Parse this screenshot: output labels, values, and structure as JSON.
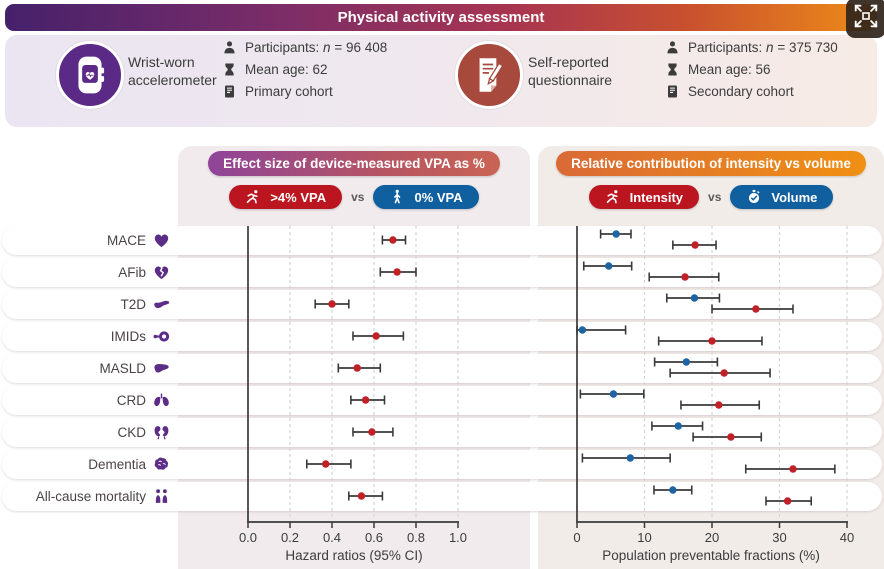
{
  "header": {
    "title": "Physical activity assessment"
  },
  "viewer": {
    "expand_icon": "expand-icon"
  },
  "colors": {
    "accent_purple": "#5b2a86",
    "questionnaire_red": "#a8493e",
    "intensity_red": "#c02026",
    "volume_blue": "#1e64a4",
    "errorbar_dark": "#3a3a3a",
    "grid": "#d9d2d6"
  },
  "cohort_panel": {
    "groups": [
      {
        "icon": "smartwatch-icon",
        "name": "Wrist-worn accelerometer",
        "stats": [
          {
            "icon": "person-icon",
            "prefix": "Participants: ",
            "n": "n",
            "value": " = 96 408"
          },
          {
            "icon": "hourglass-icon",
            "text": "Mean age: 62"
          },
          {
            "icon": "book-icon",
            "text": "Primary cohort"
          }
        ]
      },
      {
        "icon": "questionnaire-icon",
        "name": "Self-reported questionnaire",
        "stats": [
          {
            "icon": "person-icon",
            "prefix": "Participants: ",
            "n": "n",
            "value": " = 375 730"
          },
          {
            "icon": "hourglass-icon",
            "text": "Mean age: 56"
          },
          {
            "icon": "book-icon",
            "text": "Secondary cohort"
          }
        ]
      }
    ]
  },
  "rows": [
    {
      "label": "MACE",
      "icon": "heart-icon"
    },
    {
      "label": "AFib",
      "icon": "broken-heart-icon"
    },
    {
      "label": "T2D",
      "icon": "pancreas-icon"
    },
    {
      "label": "IMIDs",
      "icon": "intestine-icon"
    },
    {
      "label": "MASLD",
      "icon": "liver-icon"
    },
    {
      "label": "CRD",
      "icon": "lungs-icon"
    },
    {
      "label": "CKD",
      "icon": "kidneys-icon"
    },
    {
      "label": "Dementia",
      "icon": "brain-icon"
    },
    {
      "label": "All-cause mortality",
      "icon": "people-icon"
    }
  ],
  "chart_data": [
    {
      "type": "forest",
      "title": "Effect size of device-measured VPA as %",
      "vs_label": "vs",
      "legend": [
        {
          "label": ">4% VPA",
          "icon": "runner-icon",
          "color": "#bb161f"
        },
        {
          "label": "0% VPA",
          "icon": "walker-icon",
          "color": "#10609f"
        }
      ],
      "xlabel": "Hazard ratios (95% CI)",
      "xlim": [
        0,
        1.0
      ],
      "xticks": [
        0,
        0.2,
        0.4,
        0.6,
        0.8,
        1.0
      ],
      "xtick_labels": [
        "0.0",
        "0.2",
        "0.4",
        "0.6",
        "0.8",
        "1.0"
      ],
      "grid": "dashed-vertical",
      "categories": [
        "MACE",
        "AFib",
        "T2D",
        "IMIDs",
        "MASLD",
        "CRD",
        "CKD",
        "Dementia",
        "All-cause mortality"
      ],
      "series": [
        {
          "name": ">4% VPA vs 0% VPA",
          "color": "#c02026",
          "values": [
            0.69,
            0.71,
            0.4,
            0.61,
            0.52,
            0.56,
            0.59,
            0.37,
            0.54
          ],
          "ci_low": [
            0.64,
            0.63,
            0.32,
            0.5,
            0.43,
            0.49,
            0.5,
            0.28,
            0.48
          ],
          "ci_high": [
            0.75,
            0.8,
            0.48,
            0.74,
            0.63,
            0.65,
            0.69,
            0.49,
            0.64
          ]
        }
      ]
    },
    {
      "type": "forest",
      "title": "Relative contribution of intensity vs volume",
      "vs_label": "vs",
      "legend": [
        {
          "label": "Intensity",
          "icon": "runner-icon",
          "color": "#bb161f"
        },
        {
          "label": "Volume",
          "icon": "stopwatch-icon",
          "color": "#10609f"
        }
      ],
      "xlabel": "Population preventable fractions (%)",
      "xlim": [
        0,
        40
      ],
      "xticks": [
        0,
        10,
        20,
        30,
        40
      ],
      "xtick_labels": [
        "0",
        "10",
        "20",
        "30",
        "40"
      ],
      "grid": "dashed-vertical",
      "categories": [
        "MACE",
        "AFib",
        "T2D",
        "IMIDs",
        "MASLD",
        "CRD",
        "CKD",
        "Dementia",
        "All-cause mortality"
      ],
      "series": [
        {
          "name": "Volume",
          "color": "#1e64a4",
          "values": [
            5.8,
            4.7,
            17.4,
            0.8,
            16.2,
            5.4,
            15.0,
            7.9,
            14.2
          ],
          "ci_low": [
            3.5,
            1.0,
            13.3,
            0.0,
            11.5,
            0.5,
            11.1,
            0.8,
            11.4
          ],
          "ci_high": [
            8.0,
            8.1,
            21.1,
            7.2,
            20.8,
            9.9,
            18.6,
            13.8,
            17.0
          ]
        },
        {
          "name": "Intensity",
          "color": "#c02026",
          "values": [
            17.5,
            16.0,
            26.5,
            20.0,
            21.8,
            21.0,
            22.8,
            32.0,
            31.2
          ],
          "ci_low": [
            14.2,
            10.7,
            20.0,
            12.1,
            13.8,
            15.4,
            17.2,
            25.0,
            28.0
          ],
          "ci_high": [
            20.6,
            21.0,
            32.0,
            27.4,
            28.6,
            27.0,
            27.3,
            38.2,
            34.7
          ]
        }
      ]
    }
  ]
}
